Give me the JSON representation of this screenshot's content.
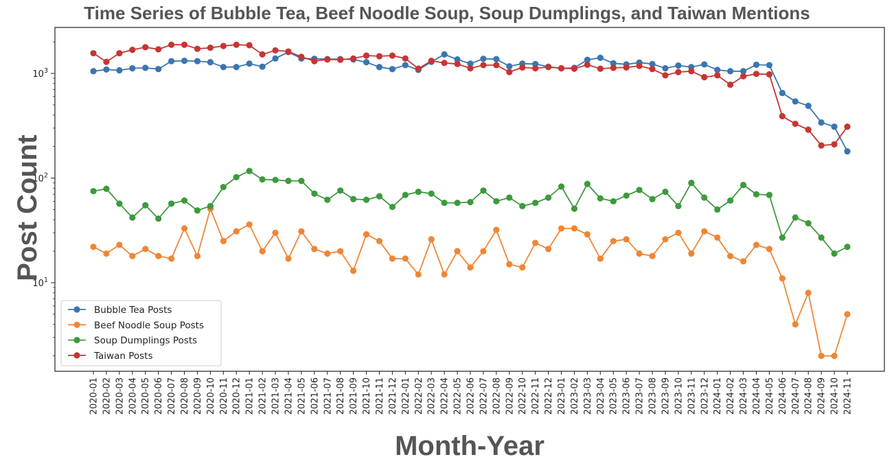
{
  "chart_data": {
    "type": "line",
    "title": "Time Series of Bubble Tea, Beef Noodle Soup, Soup Dumplings, and Taiwan Mentions",
    "xlabel": "Month-Year",
    "ylabel": "Post Count",
    "yscale": "log",
    "ylim": [
      1.35,
      2700
    ],
    "ytick_labels": [
      {
        "value": 10,
        "base": "10",
        "exp": "1"
      },
      {
        "value": 100,
        "base": "10",
        "exp": "2"
      },
      {
        "value": 1000,
        "base": "10",
        "exp": "3"
      }
    ],
    "grid": false,
    "legend_position": "lower-left",
    "categories": [
      "2020-01",
      "2020-02",
      "2020-03",
      "2020-04",
      "2020-05",
      "2020-06",
      "2020-07",
      "2020-08",
      "2020-09",
      "2020-10",
      "2020-11",
      "2020-12",
      "2021-01",
      "2021-02",
      "2021-03",
      "2021-04",
      "2021-05",
      "2021-06",
      "2021-07",
      "2021-08",
      "2021-09",
      "2021-10",
      "2021-11",
      "2021-12",
      "2022-01",
      "2022-02",
      "2022-03",
      "2022-04",
      "2022-05",
      "2022-06",
      "2022-07",
      "2022-08",
      "2022-09",
      "2022-10",
      "2022-11",
      "2022-12",
      "2023-01",
      "2023-02",
      "2023-03",
      "2023-04",
      "2023-05",
      "2023-06",
      "2023-07",
      "2023-08",
      "2023-09",
      "2023-10",
      "2023-11",
      "2023-12",
      "2024-01",
      "2024-02",
      "2024-03",
      "2024-04",
      "2024-05",
      "2024-06",
      "2024-07",
      "2024-08",
      "2024-09",
      "2024-10",
      "2024-11"
    ],
    "series": [
      {
        "name": "Bubble Tea Posts",
        "color": "#3a75b0",
        "values": [
          1050,
          1090,
          1070,
          1120,
          1130,
          1100,
          1310,
          1320,
          1310,
          1280,
          1150,
          1150,
          1240,
          1160,
          1390,
          1600,
          1390,
          1380,
          1370,
          1370,
          1360,
          1280,
          1150,
          1100,
          1200,
          1080,
          1290,
          1520,
          1360,
          1240,
          1380,
          1370,
          1170,
          1240,
          1230,
          1160,
          1120,
          1130,
          1350,
          1410,
          1250,
          1220,
          1270,
          1230,
          1120,
          1190,
          1150,
          1220,
          1080,
          1050,
          1050,
          1210,
          1200,
          650,
          540,
          490,
          340,
          310,
          180
        ]
      },
      {
        "name": "Beef Noodle Soup Posts",
        "color": "#ef8636",
        "values": [
          22,
          19,
          23,
          18,
          21,
          18,
          17,
          33,
          18,
          51,
          25,
          31,
          36,
          20,
          30,
          17,
          31,
          21,
          19,
          20,
          13,
          29,
          25,
          17,
          17,
          12,
          26,
          12,
          20,
          14,
          20,
          32,
          15,
          14,
          24,
          21,
          33,
          33,
          29,
          17,
          25,
          26,
          19,
          18,
          26,
          30,
          19,
          31,
          27,
          18,
          16,
          23,
          21,
          11,
          4,
          8,
          2,
          2,
          5
        ]
      },
      {
        "name": "Soup Dumplings Posts",
        "color": "#3d9a3d",
        "values": [
          75,
          79,
          57,
          42,
          55,
          41,
          57,
          61,
          49,
          54,
          82,
          102,
          117,
          97,
          96,
          94,
          94,
          71,
          62,
          76,
          63,
          62,
          67,
          53,
          69,
          74,
          71,
          58,
          58,
          59,
          76,
          60,
          65,
          54,
          58,
          65,
          83,
          51,
          88,
          64,
          60,
          68,
          77,
          63,
          74,
          54,
          90,
          65,
          50,
          61,
          86,
          70,
          69,
          27,
          42,
          37,
          27,
          19,
          22
        ]
      },
      {
        "name": "Taiwan Posts",
        "color": "#c63533",
        "values": [
          1560,
          1290,
          1560,
          1680,
          1780,
          1700,
          1880,
          1880,
          1720,
          1760,
          1830,
          1880,
          1860,
          1520,
          1660,
          1620,
          1440,
          1310,
          1360,
          1350,
          1390,
          1480,
          1460,
          1480,
          1390,
          1110,
          1320,
          1260,
          1230,
          1120,
          1200,
          1200,
          1030,
          1140,
          1120,
          1150,
          1120,
          1110,
          1210,
          1110,
          1130,
          1140,
          1180,
          1100,
          960,
          1030,
          1050,
          920,
          960,
          780,
          940,
          990,
          980,
          390,
          330,
          290,
          205,
          210,
          310
        ]
      }
    ]
  }
}
